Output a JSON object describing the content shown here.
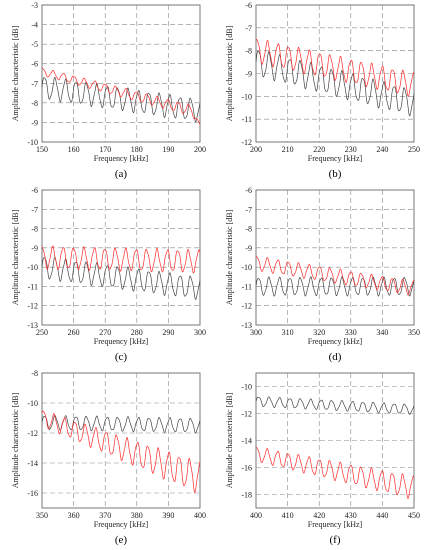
{
  "chart_data": [
    {
      "type": "line",
      "caption": "(a)",
      "xlabel": "Frequency [kHz]",
      "ylabel": "Amplitude characteristic [dB]",
      "xlim": [
        150,
        200
      ],
      "ylim": [
        -10,
        -3
      ],
      "xticks": [
        "150",
        "160",
        "170",
        "180",
        "190",
        "200"
      ],
      "yticks": [
        "-3",
        "-4",
        "-5",
        "-6",
        "-7",
        "-8",
        "-9",
        "-10"
      ],
      "grid": true,
      "series": [
        {
          "color": "#444444",
          "kind": "oscillating",
          "x": [
            150,
            200
          ],
          "trend": [
            -7.2,
            -8.4
          ],
          "amplitude": 0.55,
          "period": 3.3
        },
        {
          "color": "#ff2a2a",
          "kind": "oscillating",
          "x": [
            150,
            200
          ],
          "trend": [
            -6.4,
            -8.5
          ],
          "amplitude": 0.18,
          "period": 3.3,
          "phase": 1.2,
          "amplitude_growth": 0.5,
          "end_value": -9.1
        }
      ]
    },
    {
      "type": "line",
      "caption": "(b)",
      "xlabel": "Frequency [kHz]",
      "ylabel": "Amplitude characteristic [dB]",
      "xlim": [
        200,
        250
      ],
      "ylim": [
        -12,
        -6
      ],
      "xticks": [
        "200",
        "210",
        "220",
        "230",
        "240",
        "250"
      ],
      "yticks": [
        "-6",
        "-7",
        "-8",
        "-9",
        "-10",
        "-11",
        "-12"
      ],
      "grid": true,
      "series": [
        {
          "color": "#444444",
          "kind": "oscillating",
          "x": [
            200,
            250
          ],
          "trend": [
            -8.5,
            -10.3
          ],
          "amplitude": 0.55,
          "period": 3.3
        },
        {
          "color": "#ff2a2a",
          "kind": "oscillating",
          "x": [
            200,
            250
          ],
          "trend": [
            -8.0,
            -9.5
          ],
          "amplitude": 0.5,
          "period": 3.3,
          "phase": 0.9
        }
      ]
    },
    {
      "type": "line",
      "caption": "(c)",
      "xlabel": "Frequency [kHz]",
      "ylabel": "Amplitude characteristic [dB]",
      "xlim": [
        250,
        300
      ],
      "ylim": [
        -13,
        -6
      ],
      "xticks": [
        "250",
        "260",
        "270",
        "280",
        "290",
        "300"
      ],
      "yticks": [
        "-6",
        "-7",
        "-8",
        "-9",
        "-10",
        "-11",
        "-12",
        "-13"
      ],
      "grid": true,
      "series": [
        {
          "color": "#444444",
          "kind": "oscillating",
          "x": [
            250,
            300
          ],
          "trend": [
            -10.0,
            -11.1
          ],
          "amplitude": 0.55,
          "period": 3.3
        },
        {
          "color": "#ff2a2a",
          "kind": "oscillating",
          "x": [
            250,
            300
          ],
          "trend": [
            -9.5,
            -9.7
          ],
          "amplitude": 0.55,
          "period": 3.3,
          "phase": 1.4
        }
      ]
    },
    {
      "type": "line",
      "caption": "(d)",
      "xlabel": "Frequency [kHz]",
      "ylabel": "Amplitude characteristic [dB]",
      "xlim": [
        300,
        350
      ],
      "ylim": [
        -13,
        -6
      ],
      "xticks": [
        "300",
        "310",
        "320",
        "330",
        "340",
        "350"
      ],
      "yticks": [
        "-6",
        "-7",
        "-8",
        "-9",
        "-10",
        "-11",
        "-12",
        "-13"
      ],
      "grid": true,
      "series": [
        {
          "color": "#444444",
          "kind": "oscillating",
          "x": [
            300,
            350
          ],
          "trend": [
            -11.0,
            -11.0
          ],
          "amplitude": 0.45,
          "period": 3.3
        },
        {
          "color": "#ff2a2a",
          "kind": "oscillating",
          "x": [
            300,
            350
          ],
          "trend": [
            -9.8,
            -11.1
          ],
          "amplitude": 0.35,
          "period": 3.3,
          "phase": 1.0
        }
      ]
    },
    {
      "type": "line",
      "caption": "(e)",
      "xlabel": "Frequency [kHz]",
      "ylabel": "Amplitude characteristic [dB]",
      "xlim": [
        350,
        400
      ],
      "ylim": [
        -17,
        -8
      ],
      "xticks": [
        "350",
        "360",
        "370",
        "380",
        "390",
        "400"
      ],
      "yticks": [
        "-8",
        "-10",
        "-12",
        "-14",
        "-16"
      ],
      "grid": true,
      "series": [
        {
          "color": "#444444",
          "kind": "oscillating",
          "x": [
            350,
            400
          ],
          "trend": [
            -11.3,
            -11.5
          ],
          "amplitude": 0.45,
          "period": 3.3
        },
        {
          "color": "#ff2a2a",
          "kind": "oscillating",
          "x": [
            350,
            400
          ],
          "trend": [
            -11.0,
            -15.0
          ],
          "amplitude": 0.5,
          "period": 3.3,
          "phase": 0.6,
          "amplitude_growth": 1.0
        }
      ]
    },
    {
      "type": "line",
      "caption": "(f)",
      "xlabel": "Frequency [kHz]",
      "ylabel": "Amplitude characteristic [dB]",
      "xlim": [
        400,
        450
      ],
      "ylim": [
        -19,
        -9
      ],
      "xticks": [
        "400",
        "410",
        "420",
        "430",
        "440",
        "450"
      ],
      "yticks": [
        "-10",
        "-12",
        "-14",
        "-16",
        "-18"
      ],
      "grid": true,
      "series": [
        {
          "color": "#444444",
          "kind": "oscillating",
          "x": [
            400,
            450
          ],
          "trend": [
            -11.1,
            -11.7
          ],
          "amplitude": 0.35,
          "period": 3.3
        },
        {
          "color": "#ff2a2a",
          "kind": "oscillating",
          "x": [
            400,
            450
          ],
          "trend": [
            -15.0,
            -17.5
          ],
          "amplitude": 0.5,
          "period": 3.3,
          "phase": 1.1,
          "amplitude_growth": 0.6
        }
      ]
    }
  ]
}
